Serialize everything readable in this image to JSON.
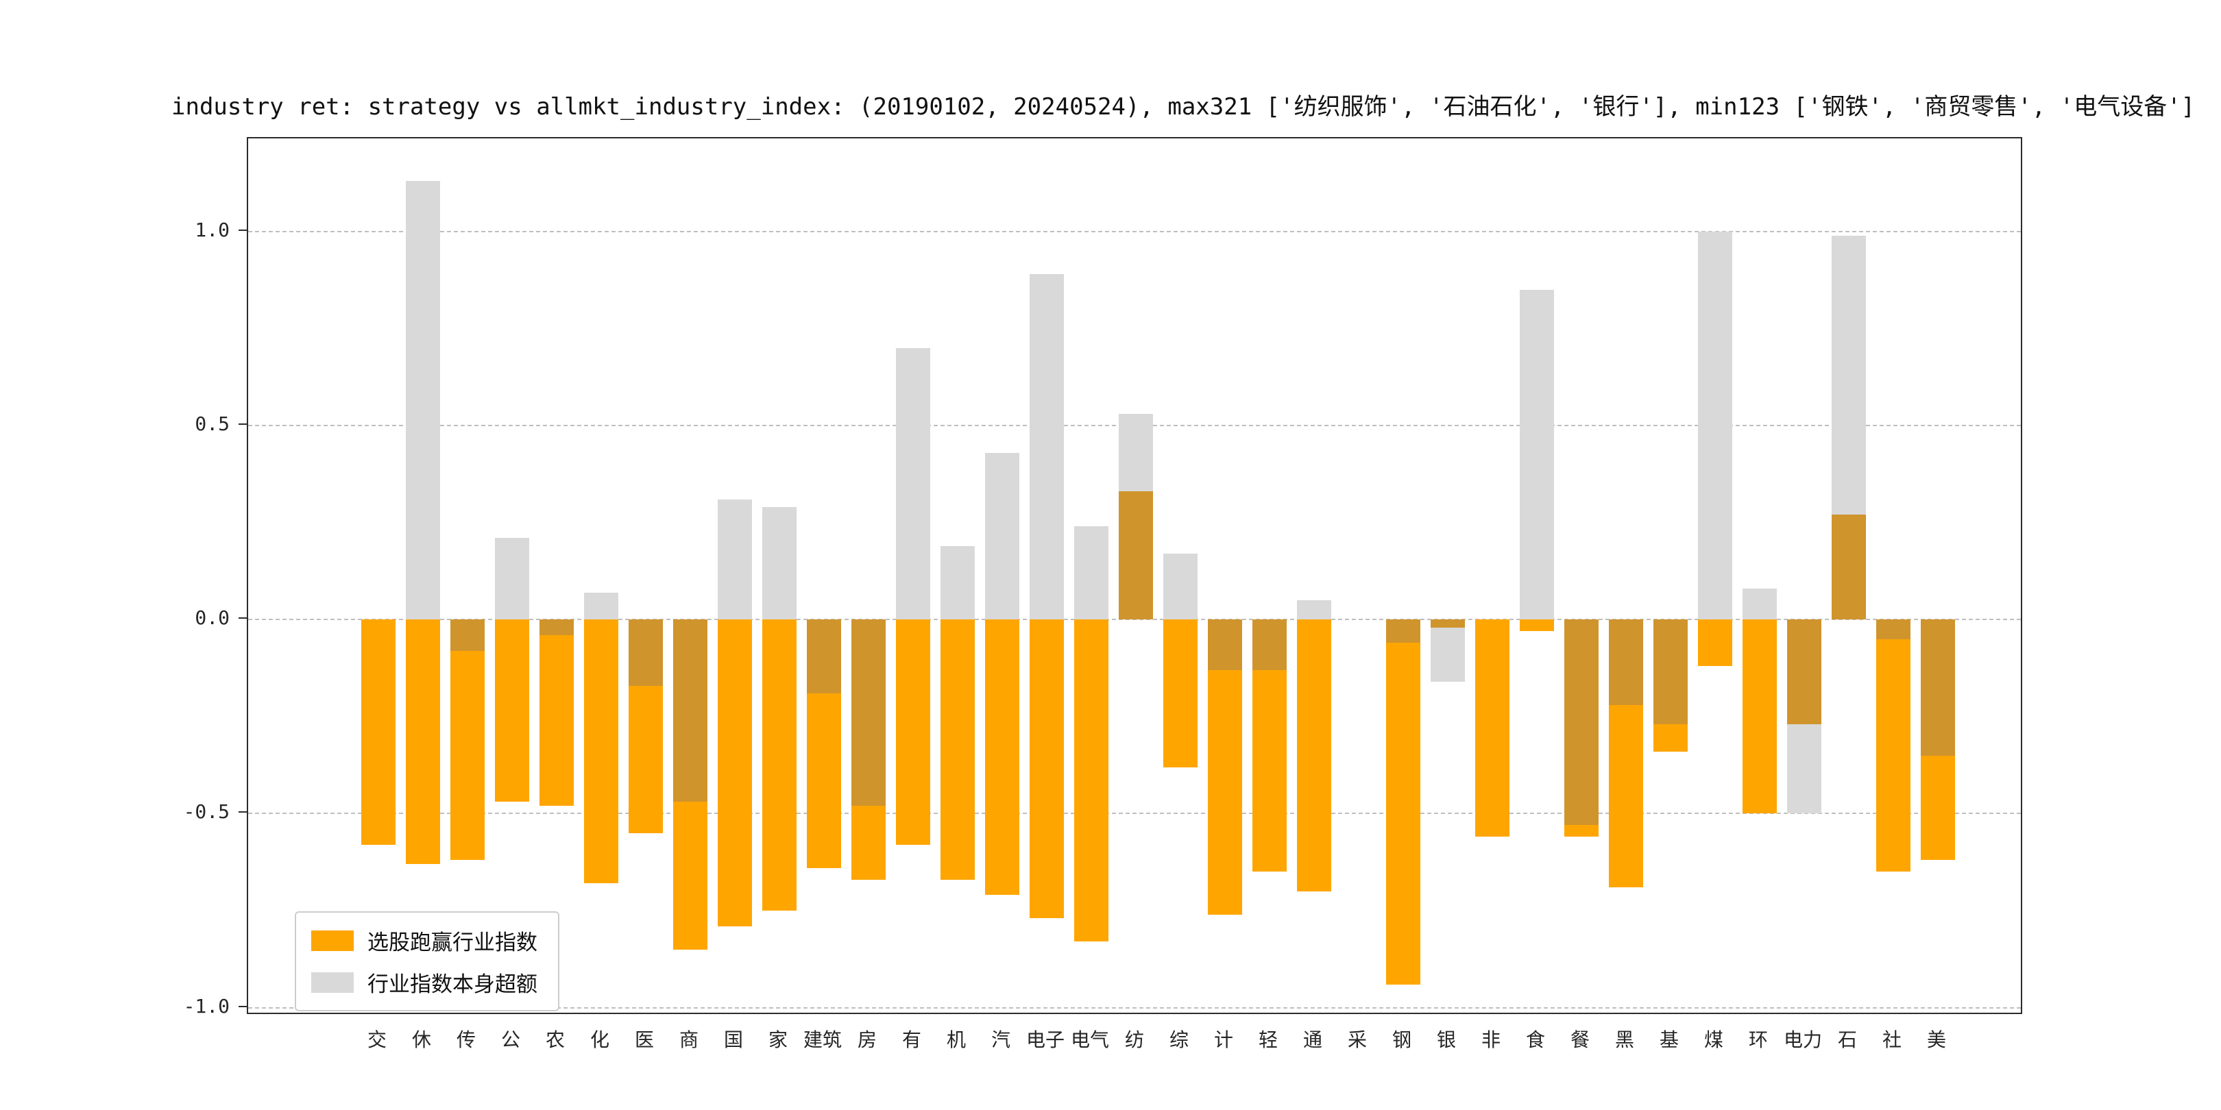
{
  "title": "industry ret: strategy vs allmkt_industry_index: (20190102, 20240524), max321 ['纺织服饰', '石油石化', '银行'], min123 ['钢铁', '商贸零售', '电气设备']",
  "legend": {
    "items": [
      {
        "label": "选股跑赢行业指数",
        "color": "#FFA500"
      },
      {
        "label": "行业指数本身超额",
        "color": "#D9D9D9"
      }
    ]
  },
  "colors": {
    "orange": "#FFA500",
    "gray": "#D9D9D9",
    "overlap": "#D0942C",
    "grid": "#bfbfbf",
    "spine": "#2b2b2b"
  },
  "chart_data": {
    "type": "bar",
    "title": "industry ret: strategy vs allmkt_industry_index: (20190102, 20240524), max321 ['纺织服饰', '石油石化', '银行'], min123 ['钢铁', '商贸零售', '电气设备']",
    "xlabel": "",
    "ylabel": "",
    "ylim": [
      -1.02,
      1.24
    ],
    "yticks": [
      1.0,
      0.5,
      0.0,
      -0.5,
      -1.0
    ],
    "ytick_labels": [
      "1.0",
      "0.5",
      "0.0",
      "-0.5",
      "-1.0"
    ],
    "grid": "horizontal dashed",
    "legend_position": "lower left",
    "categories": [
      "交",
      "休",
      "传",
      "公",
      "农",
      "化",
      "医",
      "商",
      "国",
      "家",
      "建筑",
      "房",
      "有",
      "机",
      "汽",
      "电子",
      "电气",
      "纺",
      "综",
      "计",
      "轻",
      "通",
      "采",
      "钢",
      "银",
      "非",
      "食",
      "餐",
      "黑",
      "基",
      "煤",
      "环",
      "电力",
      "石",
      "社",
      "美"
    ],
    "series": [
      {
        "name": "选股跑赢行业指数",
        "color": "#FFA500",
        "values": [
          -0.58,
          -0.63,
          -0.62,
          -0.47,
          -0.48,
          -0.68,
          -0.55,
          -0.85,
          -0.79,
          -0.75,
          -0.64,
          -0.67,
          -0.58,
          -0.67,
          -0.71,
          -0.77,
          -0.83,
          0.33,
          -0.38,
          -0.76,
          -0.65,
          -0.7,
          0.0,
          -0.94,
          -0.02,
          -0.56,
          -0.03,
          -0.56,
          -0.69,
          -0.34,
          -0.12,
          -0.5,
          -0.27,
          0.27,
          -0.65,
          -0.62
        ]
      },
      {
        "name": "行业指数本身超额",
        "color": "#D9D9D9",
        "values": [
          0.0,
          1.13,
          -0.08,
          0.21,
          -0.04,
          0.07,
          -0.17,
          -0.47,
          0.31,
          0.29,
          -0.19,
          -0.48,
          0.7,
          0.19,
          0.43,
          0.89,
          0.24,
          0.53,
          0.17,
          -0.13,
          -0.13,
          0.05,
          0.0,
          -0.06,
          -0.16,
          0.0,
          0.85,
          -0.53,
          -0.22,
          -0.27,
          1.0,
          0.08,
          -0.5,
          0.99,
          -0.05,
          -0.35
        ]
      }
    ]
  }
}
